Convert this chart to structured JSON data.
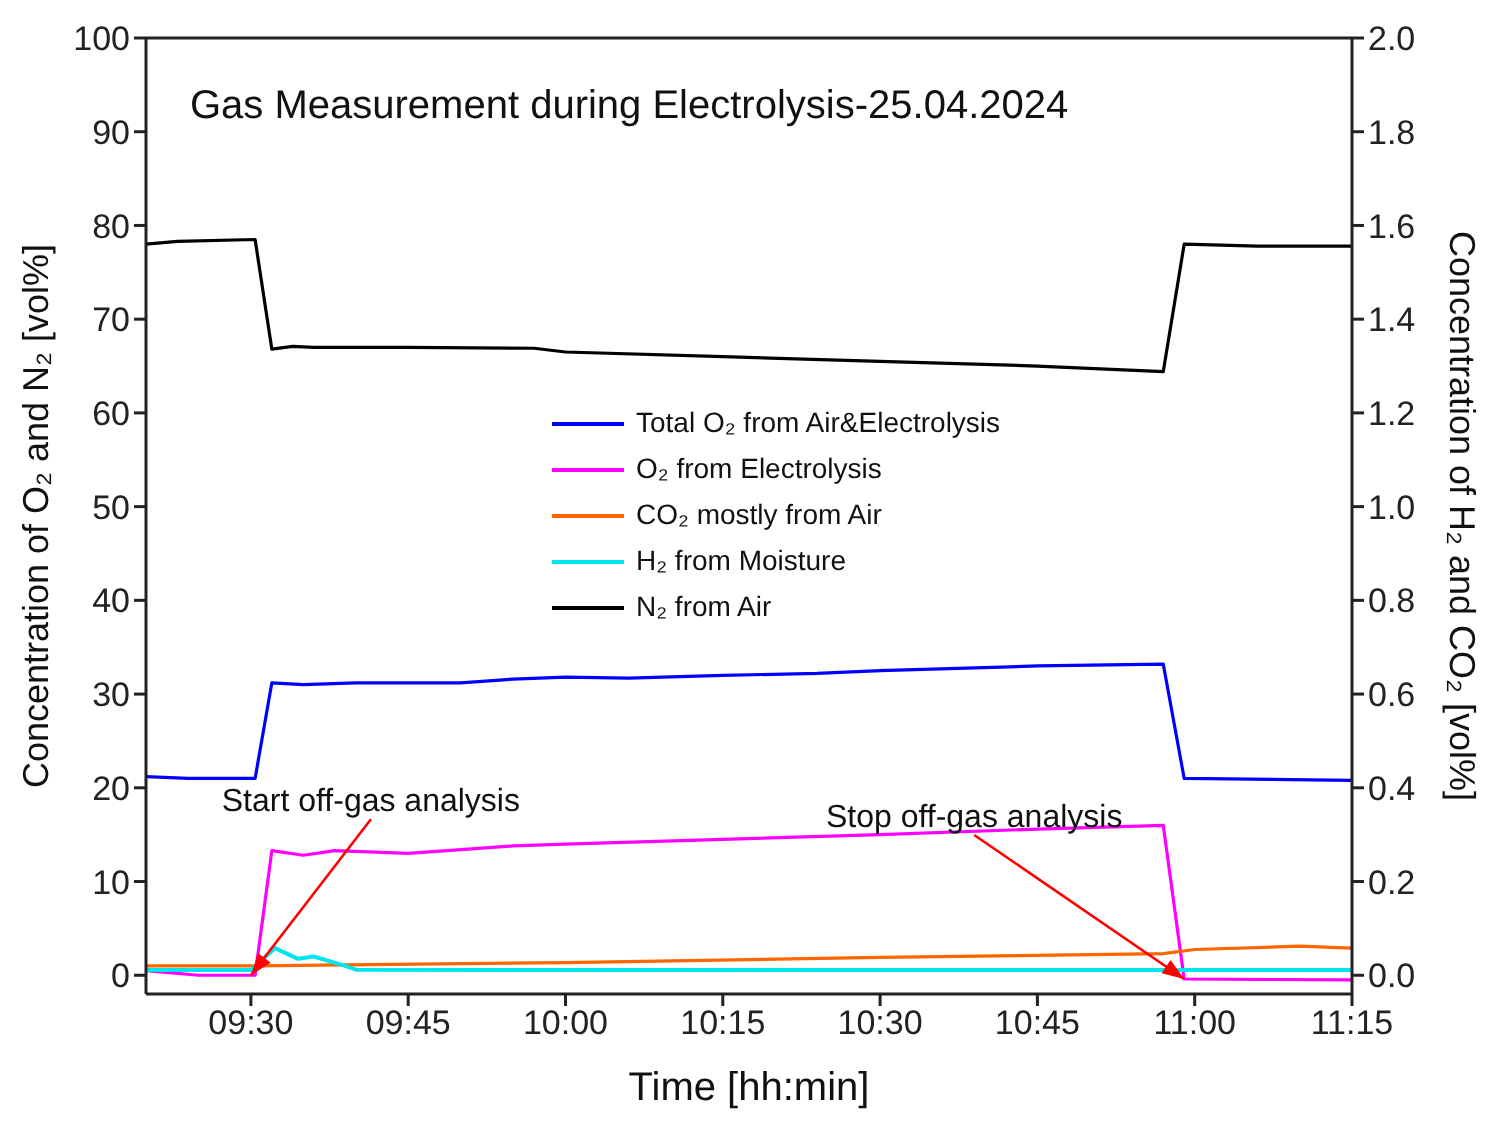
{
  "chart_data": {
    "type": "line",
    "title": "Gas Measurement during Electrolysis-25.04.2024",
    "xlabel": "Time [hh:min]",
    "ylabel": "Concentration of O₂ and N₂ [vol%]",
    "y2label": "Concentration of H₂ and CO₂ [vol%]",
    "xlim": [
      9.3333,
      11.25
    ],
    "xticks": [
      {
        "value": 9.5,
        "label": "09:30"
      },
      {
        "value": 9.75,
        "label": "09:45"
      },
      {
        "value": 10,
        "label": "10:00"
      },
      {
        "value": 10.25,
        "label": "10:15"
      },
      {
        "value": 10.5,
        "label": "10:30"
      },
      {
        "value": 10.75,
        "label": "10:45"
      },
      {
        "value": 11,
        "label": "11:00"
      },
      {
        "value": 11.25,
        "label": "11:15"
      }
    ],
    "ylim": [
      -2,
      100
    ],
    "yticks": [
      0,
      10,
      20,
      30,
      40,
      50,
      60,
      70,
      80,
      90,
      100
    ],
    "y2lim": [
      -0.04,
      2
    ],
    "y2ticks": [
      {
        "value": 0,
        "label": "0.0"
      },
      {
        "value": 0.2,
        "label": "0.2"
      },
      {
        "value": 0.4,
        "label": "0.4"
      },
      {
        "value": 0.6,
        "label": "0.6"
      },
      {
        "value": 0.8,
        "label": "0.8"
      },
      {
        "value": 1,
        "label": "1.0"
      },
      {
        "value": 1.2,
        "label": "1.2"
      },
      {
        "value": 1.4,
        "label": "1.4"
      },
      {
        "value": 1.6,
        "label": "1.6"
      },
      {
        "value": 1.8,
        "label": "1.8"
      },
      {
        "value": 2,
        "label": "2.0"
      }
    ],
    "grid": false,
    "legend": "center",
    "marker": "none",
    "line_style": "solid",
    "annotations": [
      {
        "text": "Start off-gas analysis",
        "x": 9.5,
        "y": 0
      },
      {
        "text": "Stop off-gas analysis",
        "x": 10.9833,
        "y": -0.4
      }
    ],
    "series": [
      {
        "name": "Total O₂ from Air&Electrolysis",
        "color": "#0000ff",
        "x": [
          9.3333,
          9.4,
          9.5067,
          9.5333,
          9.5833,
          9.6667,
          9.8333,
          9.9167,
          10,
          10.1,
          10.25,
          10.4,
          10.5,
          10.75,
          10.95,
          10.9833,
          11.25
        ],
        "values": [
          21.2,
          21,
          21,
          31.2,
          31,
          31.2,
          31.2,
          31.6,
          31.8,
          31.7,
          32,
          32.2,
          32.5,
          33,
          33.2,
          21,
          20.8
        ]
      },
      {
        "name": "O₂ from Electrolysis",
        "color": "#ff00ff",
        "x": [
          9.3333,
          9.4167,
          9.5067,
          9.5333,
          9.5833,
          9.6333,
          9.75,
          9.9167,
          10,
          10.25,
          10.5,
          10.75,
          10.95,
          10.9833,
          11.25
        ],
        "values": [
          0.5,
          0,
          0,
          13.3,
          12.8,
          13.3,
          13,
          13.8,
          14,
          14.5,
          15,
          15.6,
          16,
          -0.4,
          -0.5
        ]
      },
      {
        "name": "CO₂ mostly from Air",
        "color": "#ff6600",
        "axis": "y2",
        "x": [
          9.3333,
          9.5,
          10,
          10.5,
          10.95,
          11,
          11.1667,
          11.25
        ],
        "values": [
          0.02,
          0.02,
          0.027,
          0.038,
          0.046,
          0.055,
          0.062,
          0.058
        ]
      },
      {
        "name": "H₂ from Moisture",
        "color": "#00e5ee",
        "axis": "y2",
        "x": [
          9.3333,
          9.5,
          9.5383,
          9.575,
          9.6,
          9.65,
          9.6667,
          10,
          10.5,
          11,
          11.25
        ],
        "values": [
          0.011,
          0.011,
          0.058,
          0.035,
          0.04,
          0.02,
          0.012,
          0.011,
          0.011,
          0.011,
          0.011
        ]
      },
      {
        "name": "N₂ from Air",
        "color": "#000000",
        "x": [
          9.3333,
          9.3833,
          9.5067,
          9.5333,
          9.5667,
          9.6,
          9.75,
          9.95,
          10,
          10.25,
          10.5,
          10.75,
          10.95,
          10.9833,
          11.1,
          11.25
        ],
        "values": [
          78,
          78.3,
          78.5,
          66.8,
          67.1,
          67,
          67,
          66.9,
          66.5,
          66,
          65.5,
          65,
          64.4,
          78,
          77.8,
          77.8
        ]
      }
    ]
  }
}
